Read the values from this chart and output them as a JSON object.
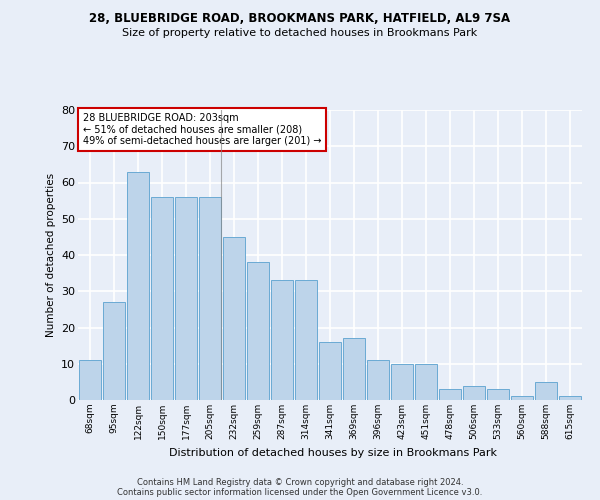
{
  "title1": "28, BLUEBRIDGE ROAD, BROOKMANS PARK, HATFIELD, AL9 7SA",
  "title2": "Size of property relative to detached houses in Brookmans Park",
  "xlabel": "Distribution of detached houses by size in Brookmans Park",
  "ylabel": "Number of detached properties",
  "categories": [
    "68sqm",
    "95sqm",
    "122sqm",
    "150sqm",
    "177sqm",
    "205sqm",
    "232sqm",
    "259sqm",
    "287sqm",
    "314sqm",
    "341sqm",
    "369sqm",
    "396sqm",
    "423sqm",
    "451sqm",
    "478sqm",
    "506sqm",
    "533sqm",
    "560sqm",
    "588sqm",
    "615sqm"
  ],
  "bar_values": [
    11,
    27,
    63,
    56,
    56,
    56,
    45,
    38,
    33,
    33,
    16,
    17,
    11,
    10,
    10,
    3,
    4,
    3,
    1,
    5,
    1
  ],
  "bar_color": "#bdd4ea",
  "bar_edge_color": "#6aaad4",
  "highlight_bar_index": 5,
  "ylim": [
    0,
    80
  ],
  "yticks": [
    0,
    10,
    20,
    30,
    40,
    50,
    60,
    70,
    80
  ],
  "annotation_line1": "28 BLUEBRIDGE ROAD: 203sqm",
  "annotation_line2": "← 51% of detached houses are smaller (208)",
  "annotation_line3": "49% of semi-detached houses are larger (201) →",
  "annotation_box_facecolor": "#ffffff",
  "annotation_box_edgecolor": "#cc0000",
  "footer1": "Contains HM Land Registry data © Crown copyright and database right 2024.",
  "footer2": "Contains public sector information licensed under the Open Government Licence v3.0.",
  "background_color": "#e8eef8",
  "grid_color": "#ffffff"
}
